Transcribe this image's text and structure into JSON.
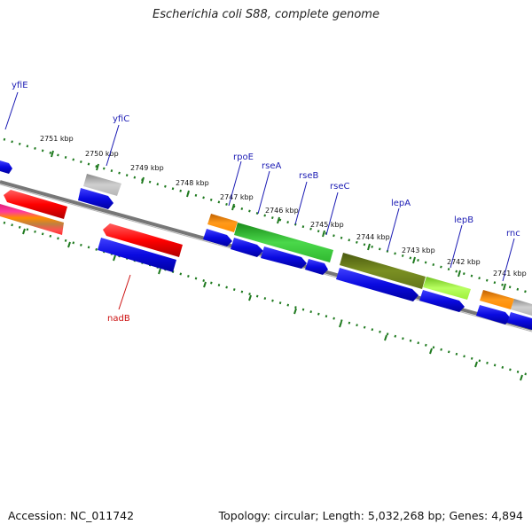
{
  "title": "Escherichia coli S88, complete genome",
  "footer": {
    "accession": "Accession: NC_011742",
    "topology": "Topology: circular; Length: 5,032,268 bp; Genes: 4,894"
  },
  "colors": {
    "backbone": "#7a7a7a",
    "ticks": "#1f7a1f",
    "gene_label": "#1c1cb4",
    "rna_label": "#cc1111",
    "cds": "#1414dc",
    "rrna": "#e00000",
    "trna": "#ff8c00",
    "pseudo": "#aaaaaa",
    "cog_green": "#2fbf2f",
    "cog_olive": "#6b7f1a",
    "cog_lime": "#9ef03a",
    "cog_magenta": "#e0207a"
  },
  "kbp_labels": [
    "2751 kbp",
    "2750 kbp",
    "2749 kbp",
    "2748 kbp",
    "2747 kbp",
    "2746 kbp",
    "2745 kbp",
    "2744 kbp",
    "2743 kbp",
    "2742 kbp",
    "2741 kbp"
  ],
  "gene_labels": [
    "yfiE",
    "yfiC",
    "rpoE",
    "rseA",
    "rseB",
    "rseC",
    "lepA",
    "lepB",
    "rnc",
    "nadB"
  ]
}
